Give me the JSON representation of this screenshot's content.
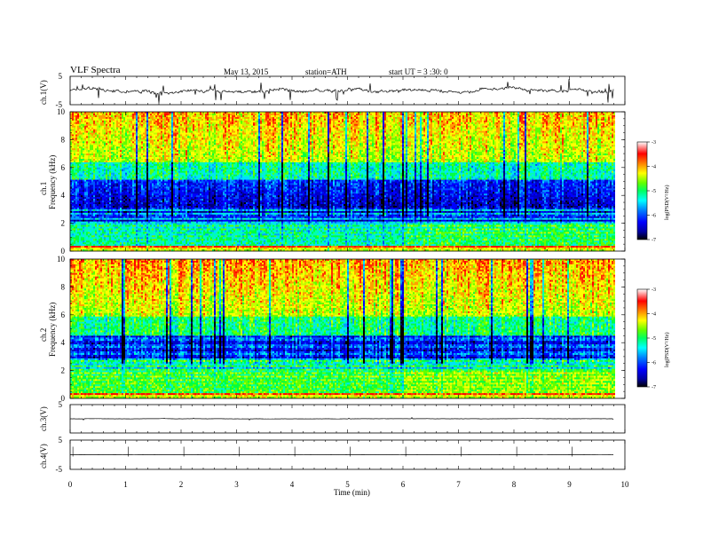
{
  "header": {
    "title": "VLF  Spectra",
    "date": "May 13, 2015",
    "station": "station=ATH",
    "start": "start  UT =   3  :30: 0"
  },
  "axes": {
    "xlabel": "Time  (min)",
    "ch1_wave_label": "ch.1(V)",
    "ch1_spec_label_a": "ch.1",
    "ch1_spec_label_b": "Frequency  (kHz)",
    "ch2_spec_label_a": "ch.2",
    "ch2_spec_label_b": "Frequency  (kHz)",
    "ch3_wave_label": "ch.3(V)",
    "ch4_wave_label": "ch.4(V)",
    "colorbar_label": "log(PSD(V²/Hz)",
    "wave_ticks_top": "5",
    "wave_ticks_bottom": "-5",
    "wave_tick_mid": "-5",
    "wave_tick_mid2": "5",
    "wave_ticks_bottom2": "-5"
  },
  "chart_data": [
    {
      "type": "line",
      "name": "ch.1(V)",
      "x_unit": "min",
      "xlim": [
        0,
        10
      ],
      "ylim": [
        -5,
        5
      ],
      "y_ticks": [
        "5",
        "-5"
      ],
      "description_values": {
        "baseline_V": 0,
        "data_end_min": 9.8
      }
    },
    {
      "type": "heatmap",
      "name": "ch.1",
      "x_ticks": [
        "0",
        "1",
        "2",
        "3",
        "4",
        "5",
        "6",
        "7",
        "8",
        "9",
        "10"
      ],
      "y_ticks": [
        "0",
        "2",
        "4",
        "6",
        "8",
        "10"
      ],
      "xlim": [
        0,
        10
      ],
      "ylim": [
        0,
        10
      ],
      "ylabel": "Frequency  (kHz)",
      "colorbar": {
        "label": "log(PSD(V²/Hz)",
        "ticks": [
          "-3",
          "-4",
          "-5",
          "-6",
          "-7"
        ],
        "range": [
          -7,
          -3
        ]
      },
      "data_end_min": 9.8
    },
    {
      "type": "heatmap",
      "name": "ch.2",
      "x_ticks": [
        "0",
        "1",
        "2",
        "3",
        "4",
        "5",
        "6",
        "7",
        "8",
        "9",
        "10"
      ],
      "y_ticks": [
        "0",
        "2",
        "4",
        "6",
        "8",
        "10"
      ],
      "xlim": [
        0,
        10
      ],
      "ylim": [
        0,
        10
      ],
      "ylabel": "Frequency  (kHz)",
      "colorbar": {
        "label": "log(PSD(V²/Hz)",
        "ticks": [
          "-3",
          "-4",
          "-5",
          "-6",
          "-7"
        ],
        "range": [
          -7,
          -3
        ]
      },
      "data_end_min": 9.8
    },
    {
      "type": "line",
      "name": "ch.3(V)",
      "xlim": [
        0,
        10
      ],
      "ylim": [
        -5,
        5
      ],
      "y_ticks": [
        "5"
      ],
      "description_values": {
        "baseline_V": 0
      }
    },
    {
      "type": "line",
      "name": "ch.4(V)",
      "xlim": [
        0,
        10
      ],
      "ylim": [
        -5,
        5
      ],
      "y_ticks": [
        "5",
        "-5"
      ],
      "description_values": {
        "baseline_V": 0
      }
    }
  ],
  "x_axis": {
    "ticks": [
      "0",
      "1",
      "2",
      "3",
      "4",
      "5",
      "6",
      "7",
      "8",
      "9",
      "10"
    ],
    "label": "Time  (min)"
  },
  "colors": {
    "colormap": [
      "#000000",
      "#0000a0",
      "#0000ff",
      "#0080ff",
      "#00ffff",
      "#00ff80",
      "#00ff00",
      "#80ff00",
      "#ffff00",
      "#ff8000",
      "#ff0000",
      "#ffffff"
    ]
  }
}
